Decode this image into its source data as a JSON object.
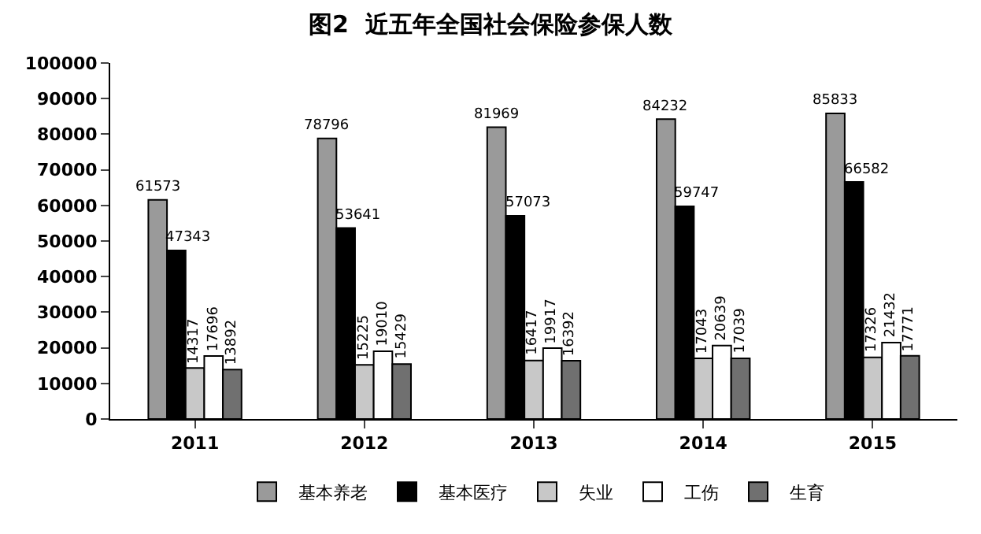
{
  "chart_data": {
    "type": "bar",
    "title": "图2  近五年全国社会保险参保人数",
    "categories": [
      "2011",
      "2012",
      "2013",
      "2014",
      "2015"
    ],
    "series": [
      {
        "name": "基本养老",
        "color": "#9a9a9a",
        "values": [
          61573,
          78796,
          81969,
          84232,
          85833
        ]
      },
      {
        "name": "基本医疗",
        "color": "#000000",
        "values": [
          47343,
          53641,
          57073,
          59747,
          66582
        ]
      },
      {
        "name": "失业",
        "color": "#c8c8c8",
        "values": [
          14317,
          15225,
          16417,
          17043,
          17326
        ]
      },
      {
        "name": "工伤",
        "color": "#ffffff",
        "values": [
          17696,
          19010,
          19917,
          20639,
          21432
        ]
      },
      {
        "name": "生育",
        "color": "#707070",
        "values": [
          13892,
          15429,
          16392,
          17039,
          17771
        ]
      }
    ],
    "ylim": [
      0,
      100000
    ],
    "yticks": [
      0,
      10000,
      20000,
      30000,
      40000,
      50000,
      60000,
      70000,
      80000,
      90000,
      100000
    ],
    "legend": "bottom",
    "data_labels": true
  }
}
